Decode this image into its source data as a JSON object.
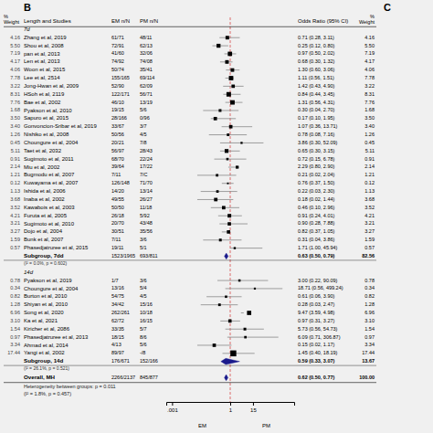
{
  "chart_data": {
    "type": "forest",
    "panel_labels": [
      "B",
      "C"
    ],
    "headers": {
      "weight_left": "%\nWeight",
      "studies": "Length and Studies",
      "em": "EM n/N",
      "pm": "PM n/N",
      "or": "Odds Ratio (95% CI)",
      "weight_right": "%\nWeight"
    },
    "groups": [
      {
        "label": "7d",
        "studies": [
          {
            "name": "Zhang et al, 2019",
            "em": "61/71",
            "pm": "48/11",
            "or": 0.71,
            "ci_lo": 0.28,
            "ci_hi": 3.11,
            "weight": 4.16,
            "weight_label": "4.16",
            "or_label": "0.71 (0.28, 3.11)"
          },
          {
            "name": "Shou et al, 2008",
            "em": "72/91",
            "pm": "62/13",
            "or": 0.25,
            "ci_lo": 0.12,
            "ci_hi": 0.8,
            "weight": 5.5,
            "weight_label": "5.50",
            "or_label": "0.25 (0.12, 0.80)"
          },
          {
            "name": "pan et al, 2013",
            "em": "41/60",
            "pm": "32/06",
            "or": 0.97,
            "ci_lo": 0.5,
            "ci_hi": 2.02,
            "weight": 7.19,
            "weight_label": "7.19",
            "or_label": "0.97 (0.50, 2.02)"
          },
          {
            "name": "Len et al, 2013",
            "em": "74/92",
            "pm": "74/08",
            "or": 0.68,
            "ci_lo": 0.3,
            "ci_hi": 1.32,
            "weight": 4.17,
            "weight_label": "4.17",
            "or_label": "0.68 (0.30, 1.32)"
          },
          {
            "name": "Woon et al, 2015",
            "em": "50/74",
            "pm": "35/41",
            "or": 1.3,
            "ci_lo": 0.6,
            "ci_hi": 3.06,
            "weight": 4.06,
            "weight_label": "4.06",
            "or_label": "1.30 (0.60, 3.06)"
          },
          {
            "name": "Lee et al, 2514",
            "em": "155/165",
            "pm": "69/114",
            "or": 1.11,
            "ci_lo": 0.56,
            "ci_hi": 1.51,
            "weight": 7.78,
            "weight_label": "7.78",
            "or_label": "1.11 (0.56, 1.51)"
          },
          {
            "name": "Jong-Hwan et al, 2009",
            "em": "52/90",
            "pm": "62/09",
            "or": 1.42,
            "ci_lo": 0.43,
            "ci_hi": 4.9,
            "weight": 3.22,
            "weight_label": "3.22",
            "or_label": "1.42 (0.43, 4.90)"
          },
          {
            "name": "HSoh et al, 2119",
            "em": "122/171",
            "pm": "56/71",
            "or": 0.84,
            "ci_lo": 0.44,
            "ci_hi": 3.45,
            "weight": 8.31,
            "weight_label": "8.31",
            "or_label": "0.84 (0.44, 3.45)"
          },
          {
            "name": "Bae et al, 2002",
            "em": "46/10",
            "pm": "13/19",
            "or": 1.31,
            "ci_lo": 0.56,
            "ci_hi": 4.31,
            "weight": 7.76,
            "weight_label": "7.76",
            "or_label": "1.31 (0.56, 4.31)"
          },
          {
            "name": "Pyakson et al, 2010",
            "em": "19/15",
            "pm": "5/6",
            "or": 0.3,
            "ci_lo": 0.04,
            "ci_hi": 2.7,
            "weight": 1.68,
            "weight_label": "1.68",
            "or_label": "0.30 (0.04, 2.70)"
          },
          {
            "name": "Sapuro et al, 2015",
            "em": "28/166",
            "pm": "0/96",
            "or": 0.17,
            "ci_lo": 0.1,
            "ci_hi": 1.95,
            "weight": 3.5,
            "weight_label": "3.50",
            "or_label": "0.17 (0.10, 1.95)"
          },
          {
            "name": "Gonvoncion-Sribar et al, 2019",
            "em": "33/67",
            "pm": "3/7",
            "or": 1.07,
            "ci_lo": 0.36,
            "ci_hi": 13.71,
            "weight": 3.4,
            "weight_label": "3.40",
            "or_label": "1.07 (0.36, 13.71)"
          },
          {
            "name": "Nishiko et al, 2008",
            "em": "50/56",
            "pm": "4/5",
            "or": 0.78,
            "ci_lo": 0.08,
            "ci_hi": 7.16,
            "weight": 1.26,
            "weight_label": "1.26",
            "or_label": "0.78 (0.08, 7.16)"
          },
          {
            "name": "Choungure et al, 2004",
            "em": "20/21",
            "pm": "7/8",
            "or": 3.86,
            "ci_lo": 0.3,
            "ci_hi": 52.09,
            "weight": 0.45,
            "weight_label": "0.45",
            "or_label": "3.86 (0.30, 52.09)"
          },
          {
            "name": "Taet et al, 2032",
            "em": "56/97",
            "pm": "28/43",
            "or": 0.65,
            "ci_lo": 0.3,
            "ci_hi": 3.15,
            "weight": 5.11,
            "weight_label": "5.11",
            "or_label": "0.65 (0.30, 3.15)"
          },
          {
            "name": "Sugimoto et al, 2011",
            "em": "68/70",
            "pm": "22/24",
            "or": 0.72,
            "ci_lo": 0.15,
            "ci_hi": 6.78,
            "weight": 0.91,
            "weight_label": "0.91",
            "or_label": "0.72 (0.15, 6.78)"
          },
          {
            "name": "Miu et al, 2002",
            "em": "39/64",
            "pm": "17/22",
            "or": 2.29,
            "ci_lo": 0.8,
            "ci_hi": 2.9,
            "weight": 2.14,
            "weight_label": "2.14",
            "or_label": "2.29 (0.80, 2.90)"
          },
          {
            "name": "Bugmodu et al, 2007",
            "em": "7/11",
            "pm": "7/C",
            "or": 0.21,
            "ci_lo": 0.02,
            "ci_hi": 2.041,
            "weight": 1.21,
            "weight_label": "1.21",
            "or_label": "0.21 (0.02, 2.04)"
          },
          {
            "name": "Kuwayama et al, 2007",
            "em": "126/148",
            "pm": "71/70",
            "or": 0.76,
            "ci_lo": 0.37,
            "ci_hi": 1.5,
            "weight": 0.12,
            "weight_label": "0.12",
            "or_label": "0.76 (0.37, 1.50)"
          },
          {
            "name": "Ishida et al, 2006",
            "em": "14/20",
            "pm": "13/14",
            "or": 0.22,
            "ci_lo": 0.03,
            "ci_hi": 2.3,
            "weight": 1.13,
            "weight_label": "1.13",
            "or_label": "0.22 (0.03, 2.30)"
          },
          {
            "name": "Inaba et al, 2002",
            "em": "49/55",
            "pm": "26/27",
            "or": 0.18,
            "ci_lo": 0.02,
            "ci_hi": 1.44,
            "weight": 3.68,
            "weight_label": "3.68",
            "or_label": "0.18 (0.02, 1.44)"
          },
          {
            "name": "Kawabois et al, 2003",
            "em": "50/50",
            "pm": "11/18",
            "or": 0.46,
            "ci_lo": 0.1,
            "ci_hi": 2.96,
            "weight": 3.52,
            "weight_label": "3.52",
            "or_label": "0.46 (0.10, 2.96)"
          },
          {
            "name": "Furuta et al, 2005",
            "em": "26/18",
            "pm": "5/92",
            "or": 0.91,
            "ci_lo": 0.24,
            "ci_hi": 4.01,
            "weight": 4.21,
            "weight_label": "4.21",
            "or_label": "0.91 (0.24, 4.01)"
          },
          {
            "name": "Sugimoto et al, 2010",
            "em": "20/70",
            "pm": "43/48",
            "or": 0.9,
            "ci_lo": 0.28,
            "ci_hi": 7.88,
            "weight": 3.21,
            "weight_label": "3.21",
            "or_label": "0.90 (0.28, 7.88)"
          },
          {
            "name": "Dojo et al, 2004",
            "em": "30/51",
            "pm": "35/56",
            "or": 0.82,
            "ci_lo": 0.37,
            "ci_hi": 1.05,
            "weight": 3.27,
            "weight_label": "3.27",
            "or_label": "0.82 (0.37, 1.05)"
          },
          {
            "name": "Bunk et al, 2007",
            "em": "7/11",
            "pm": "3/6",
            "or": 0.31,
            "ci_lo": 0.04,
            "ci_hi": 3.86,
            "weight": 1.59,
            "weight_label": "1.59",
            "or_label": "0.31 (0.04, 3.86)"
          },
          {
            "name": "Phasedjatruree et al, 2015",
            "em": "19/11",
            "pm": "5/1",
            "or": 1.71,
            "ci_lo": 1.0,
            "ci_hi": 45.94,
            "weight": 0.57,
            "weight_label": "0.57",
            "or_label": "1.71 (1.00, 45.94)"
          }
        ],
        "subgroup": {
          "name": "Subgroup, 7dd",
          "em": "1523/1965",
          "pm": "693/811",
          "or": 0.63,
          "ci_lo": 0.5,
          "ci_hi": 0.79,
          "weight": 82.56,
          "weight_label": "82.56",
          "or_label": "0.63 (0.50, 0.79)",
          "het_text": "(I² = 0.0%, p = 0.602)"
        }
      },
      {
        "label": "14d",
        "studies": [
          {
            "name": "Pyakson et al, 2019",
            "em": "1/7",
            "pm": "3/6",
            "or": 3.0,
            "ci_lo": 0.22,
            "ci_hi": 90.09,
            "weight": 0.78,
            "weight_label": "0.78",
            "or_label": "3.00 (0.22, 90.09)"
          },
          {
            "name": "Choungure et al, 2004",
            "em": "13/16",
            "pm": "5/4",
            "or": 18.71,
            "ci_lo": 0.56,
            "ci_hi": 499.24,
            "weight": 0.34,
            "weight_label": "0.34",
            "or_label": "18.71 (0.56, 499.24)"
          },
          {
            "name": "Burton et al, 2010",
            "em": "54/75",
            "pm": "4/5",
            "or": 0.61,
            "ci_lo": 0.06,
            "ci_hi": 3.9,
            "weight": 0.82,
            "weight_label": "0.82",
            "or_label": "0.61 (0.06, 3.90)"
          },
          {
            "name": "Shiyan et al, 2010",
            "em": "34/42",
            "pm": "15/16",
            "or": 0.28,
            "ci_lo": 0.03,
            "ci_hi": 2.47,
            "weight": 1.28,
            "weight_label": "1.28",
            "or_label": "0.28 (0.03, 2.47)"
          },
          {
            "name": "Song et al, 2020",
            "em": "262/261",
            "pm": "10/18",
            "or": 9.47,
            "ci_lo": 3.59,
            "ci_hi": 4.98,
            "weight": 6.96,
            "weight_label": "6.96",
            "or_label": "9.47 (3.59, 4.98)"
          },
          {
            "name": "Ka et al, 2021",
            "em": "62/72",
            "pm": "16/15",
            "or": 0.97,
            "ci_lo": 0.31,
            "ci_hi": 3.271,
            "weight": 3.1,
            "weight_label": "3.10",
            "or_label": "0.97 (0.31, 3.27)"
          },
          {
            "name": "Kiricher et al, 2086",
            "em": "33/35",
            "pm": "5/7",
            "or": 5.73,
            "ci_lo": 0.56,
            "ci_hi": 54.73,
            "weight": 1.54,
            "weight_label": "1.54",
            "or_label": "5.73 (0.56, 54.73)"
          },
          {
            "name": "Phasedjatruree et al, 2013",
            "em": "18/15",
            "pm": "8/6",
            "or": 6.09,
            "ci_lo": 0.71,
            "ci_hi": 306.87,
            "weight": 0.97,
            "weight_label": "0.97",
            "or_label": "6.09 (0.71, 306.87)"
          },
          {
            "name": "Ahmad et al, 2014",
            "em": "4/13",
            "pm": "5/6",
            "or": 0.15,
            "ci_lo": 0.02,
            "ci_hi": 1.17,
            "weight": 3.34,
            "weight_label": "3.34",
            "or_label": "0.15 (0.02, 1.17)"
          },
          {
            "name": "Yangi et al, 2002",
            "em": "89/97",
            "pm": "-/8",
            "or": 1.45,
            "ci_lo": 0.4,
            "ci_hi": 18.19,
            "weight": 17.44,
            "weight_label": "17.44",
            "or_label": "1.45 (0.40, 18.19)"
          }
        ],
        "subgroup": {
          "name": "Subgroup, 14d",
          "em": "176/671",
          "pm": "152/166",
          "or": 0.59,
          "ci_lo": 0.33,
          "ci_hi": 3.07,
          "weight": 13.67,
          "weight_label": "13.67",
          "or_label": "0.59 (0.33, 3.07)",
          "het_text": "(I² = 26.1%, p = 0.521)"
        }
      }
    ],
    "overall": {
      "name": "Overall, MH",
      "em": "2266/2137",
      "pm": "845/877",
      "or": 0.62,
      "ci_lo": 0.5,
      "ci_hi": 0.77,
      "weight": 100.0,
      "weight_label": "100.00",
      "or_label": "0.62 (0.50, 0.77)"
    },
    "het_between": "Heterogeneity between groups: p = 0.011",
    "het_between2": "(I² = 1.8%, p = 0.457)",
    "xlabel_em": "EM",
    "xlabel_pm": "PM",
    "log": "x",
    "xlim": [
      0.0005,
      2000
    ],
    "xticks": [
      {
        "value": 0.001,
        "label": ".001"
      },
      1,
      15
    ],
    "reference_line": 1,
    "background": "#f0f0f0",
    "marker_color": "#000000",
    "diamond_color": "#1a1a8c",
    "ci_color": "#888888",
    "ref_line_color": "#cc0000"
  }
}
